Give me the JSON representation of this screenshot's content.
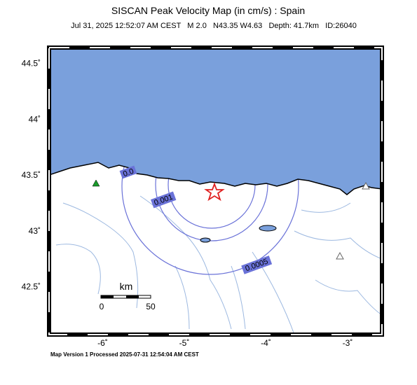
{
  "title": "SISCAN Peak Velocity Map (in cm/s) : Spain",
  "subtitle": "Jul 31, 2025 12:52:07 AM CEST   M 2.0   N43.35 W4.63   Depth: 41.7km   ID:26040",
  "lat_ticks": [
    {
      "value": 44.5,
      "label": "44.5˚"
    },
    {
      "value": 44,
      "label": "44˚"
    },
    {
      "value": 43.5,
      "label": "43.5˚"
    },
    {
      "value": 43,
      "label": "43˚"
    },
    {
      "value": 42.5,
      "label": "42.5˚"
    }
  ],
  "lon_ticks": [
    {
      "value": -6,
      "label": "-6˚"
    },
    {
      "value": -5,
      "label": "-5˚"
    },
    {
      "value": -4,
      "label": "-4˚"
    },
    {
      "value": -3,
      "label": "-3˚"
    }
  ],
  "contour_labels": [
    "0.0",
    "0.001",
    "0.0005"
  ],
  "scale": {
    "title": "km",
    "labels": [
      "0",
      "50"
    ]
  },
  "footer": "Map Version 1 Processed 2025-07-31 12:54:04 AM CEST"
}
